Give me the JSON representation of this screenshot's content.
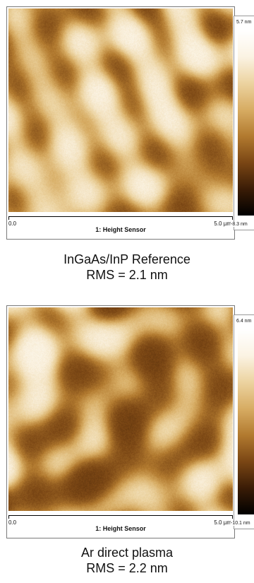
{
  "panels": [
    {
      "scan_start": "0.0",
      "scan_end": "5.0 µm",
      "channel_label": "1: Height Sensor",
      "color_max": "5.7 nm",
      "color_min": "-8.3 nm",
      "sample_name": "InGaAs/InP Reference",
      "rms": "RMS = 2.1 nm"
    },
    {
      "scan_start": "0.0",
      "scan_end": "5.0 µm",
      "channel_label": "1: Height Sensor",
      "color_max": "6.4 nm",
      "color_min": "-10.1 nm",
      "sample_name": "Ar direct plasma",
      "rms": "RMS = 2.2 nm"
    }
  ],
  "colors": {
    "colormap": [
      "#000000",
      "#3a1c06",
      "#7a4614",
      "#b27a2f",
      "#d7ac63",
      "#ecd3a0",
      "#fbf3e3",
      "#ffffff"
    ],
    "frame": "#7a7a7a"
  }
}
